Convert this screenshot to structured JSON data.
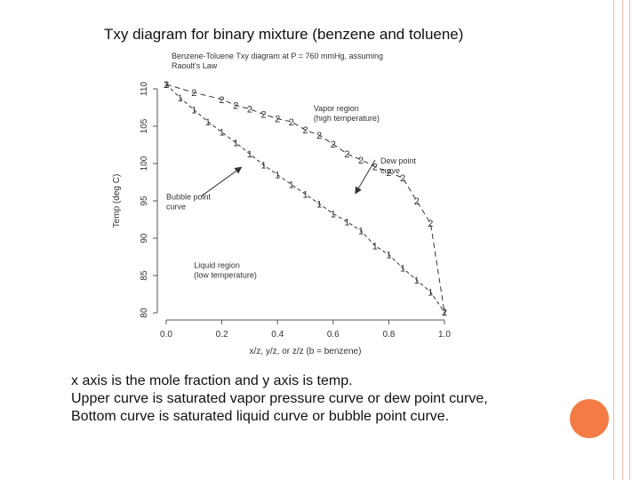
{
  "slide": {
    "title": "Txy diagram for binary mixture (benzene and toluene)",
    "caption_lines": [
      "x axis is the mole fraction and y axis is temp.",
      "Upper curve is saturated vapor pressure curve or dew point curve,",
      "Bottom curve is saturated liquid curve or bubble point curve."
    ],
    "accent_color": "#f47b43",
    "decor_line_color": "#f4b9a8"
  },
  "chart_data": {
    "type": "line",
    "title": "Benzene-Toluene Txy diagram at P = 760 mmHg, assuming Raoult's Law",
    "xlabel": "x/z, y/z, or z/z (b = benzene)",
    "ylabel": "Temp (deg C)",
    "xlim": [
      0,
      1
    ],
    "ylim": [
      80,
      110
    ],
    "x_ticks": [
      "0.0",
      "0.2",
      "0.4",
      "0.6",
      "0.8",
      "1.0"
    ],
    "y_ticks": [
      "80",
      "85",
      "90",
      "95",
      "100",
      "105",
      "110"
    ],
    "grid": false,
    "series": [
      {
        "marker": "1",
        "color": "#333333",
        "points": [
          [
            0.0,
            110.6
          ],
          [
            0.05,
            108.8
          ],
          [
            0.1,
            107.2
          ],
          [
            0.15,
            105.6
          ],
          [
            0.2,
            104.2
          ],
          [
            0.25,
            102.8
          ],
          [
            0.3,
            101.3
          ],
          [
            0.35,
            99.8
          ],
          [
            0.4,
            98.5
          ],
          [
            0.45,
            97.2
          ],
          [
            0.5,
            95.9
          ],
          [
            0.55,
            94.6
          ],
          [
            0.6,
            93.3
          ],
          [
            0.65,
            92.2
          ],
          [
            0.7,
            91.0
          ],
          [
            0.75,
            89.0
          ],
          [
            0.8,
            87.8
          ],
          [
            0.85,
            86.0
          ],
          [
            0.9,
            84.4
          ],
          [
            0.95,
            82.8
          ],
          [
            1.0,
            80.1
          ]
        ]
      },
      {
        "marker": "2",
        "color": "#333333",
        "points": [
          [
            0.0,
            110.6
          ],
          [
            0.1,
            109.5
          ],
          [
            0.2,
            108.6
          ],
          [
            0.25,
            107.8
          ],
          [
            0.3,
            107.3
          ],
          [
            0.35,
            106.6
          ],
          [
            0.4,
            106.0
          ],
          [
            0.45,
            105.6
          ],
          [
            0.5,
            104.5
          ],
          [
            0.55,
            103.8
          ],
          [
            0.6,
            102.6
          ],
          [
            0.65,
            101.3
          ],
          [
            0.7,
            100.5
          ],
          [
            0.75,
            99.6
          ],
          [
            0.8,
            98.8
          ],
          [
            0.85,
            98.1
          ],
          [
            0.9,
            95.0
          ],
          [
            0.95,
            92.0
          ],
          [
            1.0,
            80.1
          ]
        ]
      }
    ],
    "annotations": [
      {
        "text": [
          "Vapor region",
          "(high temperature)"
        ],
        "x": 0.53,
        "y": 107.0
      },
      {
        "text": [
          "Dew point",
          "curve"
        ],
        "x": 0.77,
        "y": 100.0,
        "arrow_to": [
          0.68,
          96.0
        ]
      },
      {
        "text": [
          "Bubble point",
          "curve"
        ],
        "x": 0.0,
        "y": 95.2,
        "arrow_to": [
          0.27,
          99.5
        ]
      },
      {
        "text": [
          "Liquid region",
          "(low temperature)"
        ],
        "x": 0.1,
        "y": 86.0
      }
    ]
  }
}
